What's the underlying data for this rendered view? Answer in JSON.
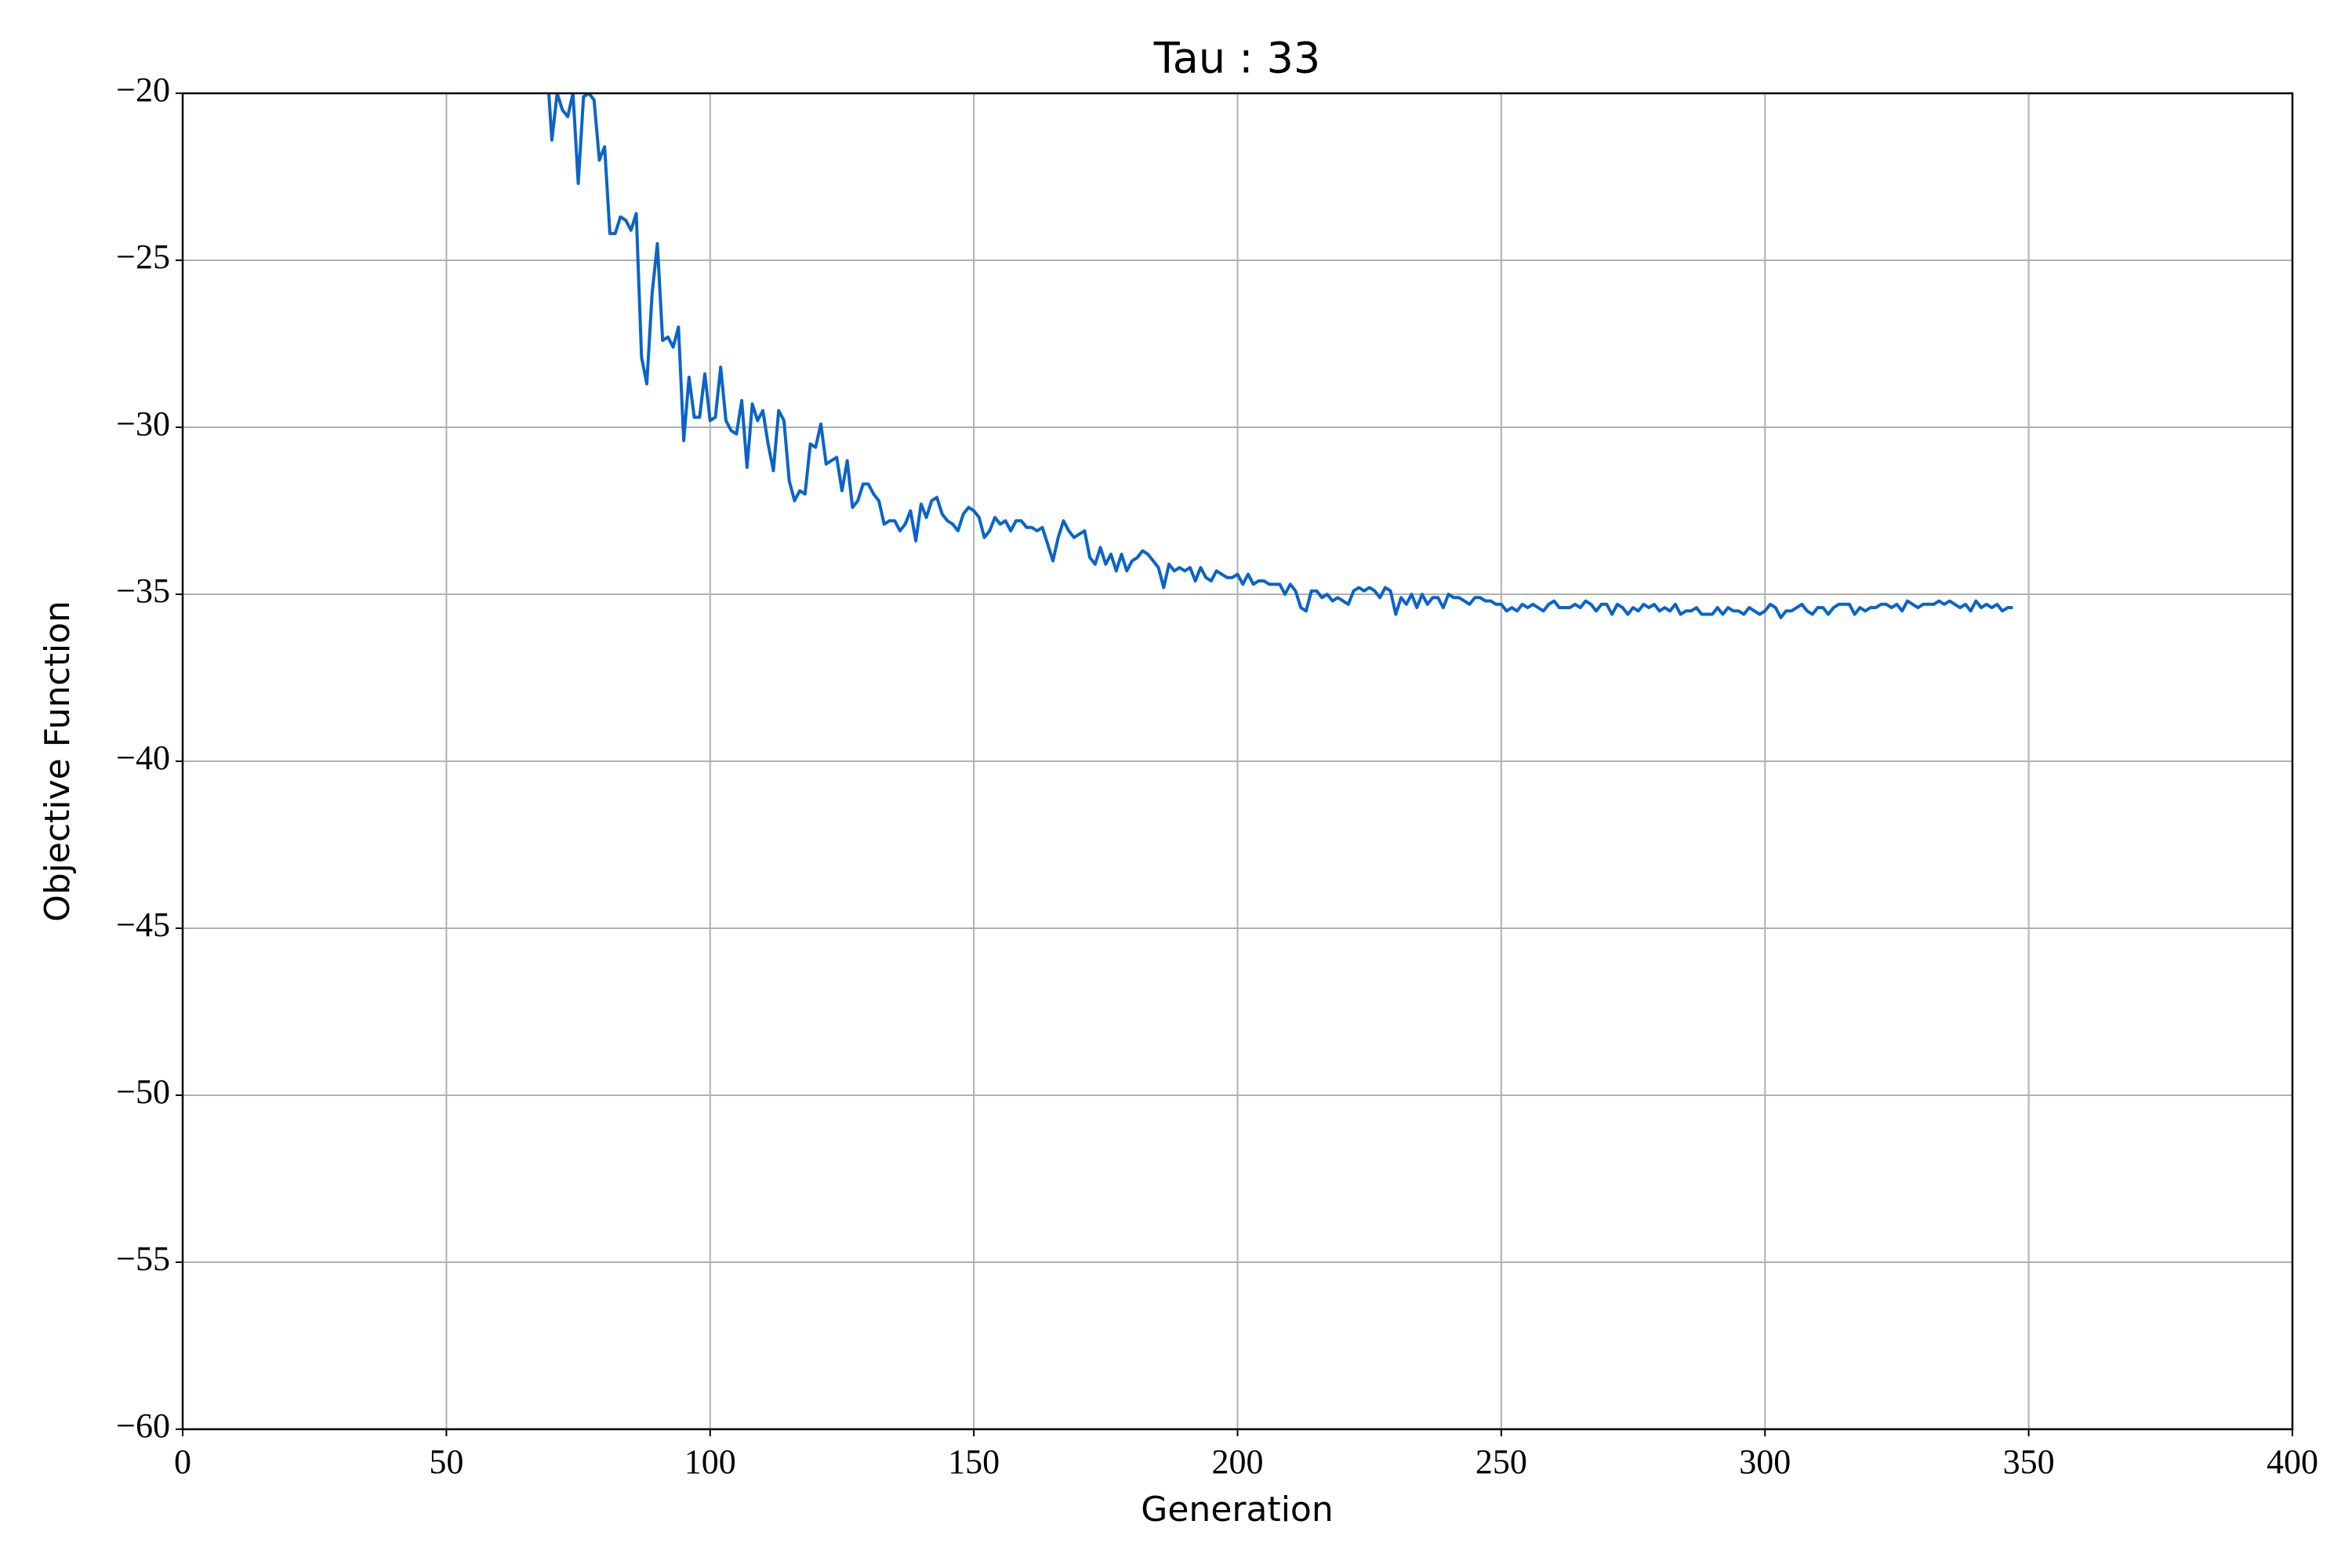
{
  "chart_data": {
    "type": "line",
    "title": "Tau : 33",
    "xlabel": "Generation",
    "ylabel": "Objective Function",
    "xlim": [
      0,
      400
    ],
    "xticks": [
      0,
      50,
      100,
      150,
      200,
      250,
      300,
      350,
      400
    ],
    "ylim": [
      -60,
      -20
    ],
    "yticks": [
      {
        "value": -60,
        "label": "−60"
      },
      {
        "value": -55,
        "label": "−55"
      },
      {
        "value": -50,
        "label": "−50"
      },
      {
        "value": -45,
        "label": "−45"
      },
      {
        "value": -40,
        "label": "−40"
      },
      {
        "value": -35,
        "label": "−35"
      },
      {
        "value": -30,
        "label": "−30"
      },
      {
        "value": -25,
        "label": "−25"
      },
      {
        "value": -20,
        "label": "−20"
      }
    ],
    "grid": true,
    "x": [
      69,
      70,
      71,
      72,
      73,
      74,
      75,
      76,
      77,
      78,
      79,
      80,
      81,
      82,
      83,
      84,
      85,
      86,
      87,
      88,
      89,
      90,
      91,
      92,
      93,
      94,
      95,
      96,
      97,
      98,
      99,
      100,
      101,
      102,
      103,
      104,
      105,
      106,
      107,
      108,
      109,
      110,
      111,
      112,
      113,
      114,
      115,
      116,
      117,
      118,
      119,
      120,
      121,
      122,
      123,
      124,
      125,
      126,
      127,
      128,
      129,
      130,
      131,
      132,
      133,
      134,
      135,
      136,
      137,
      138,
      139,
      140,
      141,
      142,
      143,
      144,
      145,
      146,
      147,
      148,
      149,
      150,
      151,
      152,
      153,
      154,
      155,
      156,
      157,
      158,
      159,
      160,
      161,
      162,
      163,
      164,
      165,
      166,
      167,
      168,
      169,
      170,
      171,
      172,
      173,
      174,
      175,
      176,
      177,
      178,
      179,
      180,
      181,
      182,
      183,
      184,
      185,
      186,
      187,
      188,
      189,
      190,
      191,
      192,
      193,
      194,
      195,
      196,
      197,
      198,
      199,
      200,
      201,
      202,
      203,
      204,
      205,
      206,
      207,
      208,
      209,
      210,
      211,
      212,
      213,
      214,
      215,
      216,
      217,
      218,
      219,
      220,
      221,
      222,
      223,
      224,
      225,
      226,
      227,
      228,
      229,
      230,
      231,
      232,
      233,
      234,
      235,
      236,
      237,
      238,
      239,
      240,
      241,
      242,
      243,
      244,
      245,
      246,
      247,
      248,
      249,
      250,
      251,
      252,
      253,
      254,
      255,
      256,
      257,
      258,
      259,
      260,
      261,
      262,
      263,
      264,
      265,
      266,
      267,
      268,
      269,
      270,
      271,
      272,
      273,
      274,
      275,
      276,
      277,
      278,
      279,
      280,
      281,
      282,
      283,
      284,
      285,
      286,
      287,
      288,
      289,
      290,
      291,
      292,
      293,
      294,
      295,
      296,
      297,
      298,
      299,
      300,
      301,
      302,
      303,
      304,
      305,
      306,
      307,
      308,
      309,
      310,
      311,
      312,
      313,
      314,
      315,
      316,
      317,
      318,
      319,
      320,
      321,
      322,
      323,
      324,
      325,
      326,
      327,
      328,
      329,
      330,
      331,
      332,
      333,
      334,
      335,
      336,
      337,
      338,
      339,
      340,
      341,
      342,
      343,
      344,
      345,
      346,
      347
    ],
    "series": [
      {
        "color": "#0a64c8",
        "values": [
          -19,
          -21.4,
          -20,
          -20.5,
          -20.7,
          -20,
          -22.7,
          -20.1,
          -20,
          -20.2,
          -22,
          -21.6,
          -24.2,
          -24.2,
          -23.7,
          -23.8,
          -24.1,
          -23.6,
          -27.9,
          -28.7,
          -26,
          -24.5,
          -27.4,
          -27.3,
          -27.6,
          -27,
          -30.4,
          -28.5,
          -29.7,
          -29.7,
          -28.4,
          -29.8,
          -29.7,
          -28.2,
          -29.8,
          -30.1,
          -30.2,
          -29.2,
          -31.2,
          -29.3,
          -29.8,
          -29.5,
          -30.5,
          -31.3,
          -29.5,
          -29.8,
          -31.6,
          -32.2,
          -31.9,
          -32,
          -30.5,
          -30.6,
          -29.9,
          -31.1,
          -31,
          -30.9,
          -31.9,
          -31,
          -32.4,
          -32.2,
          -31.7,
          -31.7,
          -32,
          -32.2,
          -32.9,
          -32.8,
          -32.8,
          -33.1,
          -32.9,
          -32.5,
          -33.4,
          -32.3,
          -32.7,
          -32.2,
          -32.1,
          -32.6,
          -32.8,
          -32.9,
          -33.1,
          -32.6,
          -32.4,
          -32.5,
          -32.7,
          -33.3,
          -33.1,
          -32.7,
          -32.9,
          -32.8,
          -33.1,
          -32.8,
          -32.8,
          -33,
          -33,
          -33.1,
          -33,
          -33.5,
          -34,
          -33.3,
          -32.8,
          -33.1,
          -33.3,
          -33.2,
          -33.1,
          -33.9,
          -34.1,
          -33.6,
          -34.1,
          -33.8,
          -34.3,
          -33.8,
          -34.3,
          -34,
          -33.9,
          -33.7,
          -33.8,
          -34,
          -34.2,
          -34.8,
          -34.1,
          -34.3,
          -34.2,
          -34.3,
          -34.2,
          -34.6,
          -34.2,
          -34.5,
          -34.6,
          -34.3,
          -34.4,
          -34.5,
          -34.5,
          -34.4,
          -34.7,
          -34.4,
          -34.7,
          -34.6,
          -34.6,
          -34.7,
          -34.7,
          -34.7,
          -35,
          -34.7,
          -34.9,
          -35.4,
          -35.5,
          -34.9,
          -34.9,
          -35.1,
          -35,
          -35.2,
          -35.1,
          -35.2,
          -35.3,
          -34.9,
          -34.8,
          -34.9,
          -34.8,
          -34.9,
          -35.1,
          -34.8,
          -34.9,
          -35.6,
          -35.1,
          -35.3,
          -35,
          -35.4,
          -35,
          -35.3,
          -35.1,
          -35.1,
          -35.4,
          -35,
          -35.1,
          -35.1,
          -35.2,
          -35.3,
          -35.1,
          -35.1,
          -35.2,
          -35.2,
          -35.3,
          -35.3,
          -35.5,
          -35.4,
          -35.5,
          -35.3,
          -35.4,
          -35.3,
          -35.4,
          -35.5,
          -35.3,
          -35.2,
          -35.4,
          -35.4,
          -35.4,
          -35.3,
          -35.4,
          -35.2,
          -35.3,
          -35.5,
          -35.3,
          -35.3,
          -35.6,
          -35.3,
          -35.4,
          -35.6,
          -35.4,
          -35.5,
          -35.3,
          -35.4,
          -35.3,
          -35.5,
          -35.4,
          -35.5,
          -35.3,
          -35.6,
          -35.5,
          -35.5,
          -35.4,
          -35.6,
          -35.6,
          -35.6,
          -35.4,
          -35.6,
          -35.4,
          -35.5,
          -35.5,
          -35.6,
          -35.4,
          -35.5,
          -35.6,
          -35.5,
          -35.3,
          -35.4,
          -35.7,
          -35.5,
          -35.5,
          -35.4,
          -35.3,
          -35.5,
          -35.6,
          -35.4,
          -35.4,
          -35.6,
          -35.4,
          -35.3,
          -35.3,
          -35.3,
          -35.6,
          -35.4,
          -35.5,
          -35.4,
          -35.4,
          -35.3,
          -35.3,
          -35.4,
          -35.3,
          -35.5,
          -35.2,
          -35.3,
          -35.4,
          -35.3,
          -35.3,
          -35.3,
          -35.2,
          -35.3,
          -35.2,
          -35.3,
          -35.4,
          -35.3,
          -35.5,
          -35.2,
          -35.4,
          -35.3,
          -35.4,
          -35.3,
          -35.5,
          -35.4,
          -35.4
        ]
      }
    ]
  }
}
